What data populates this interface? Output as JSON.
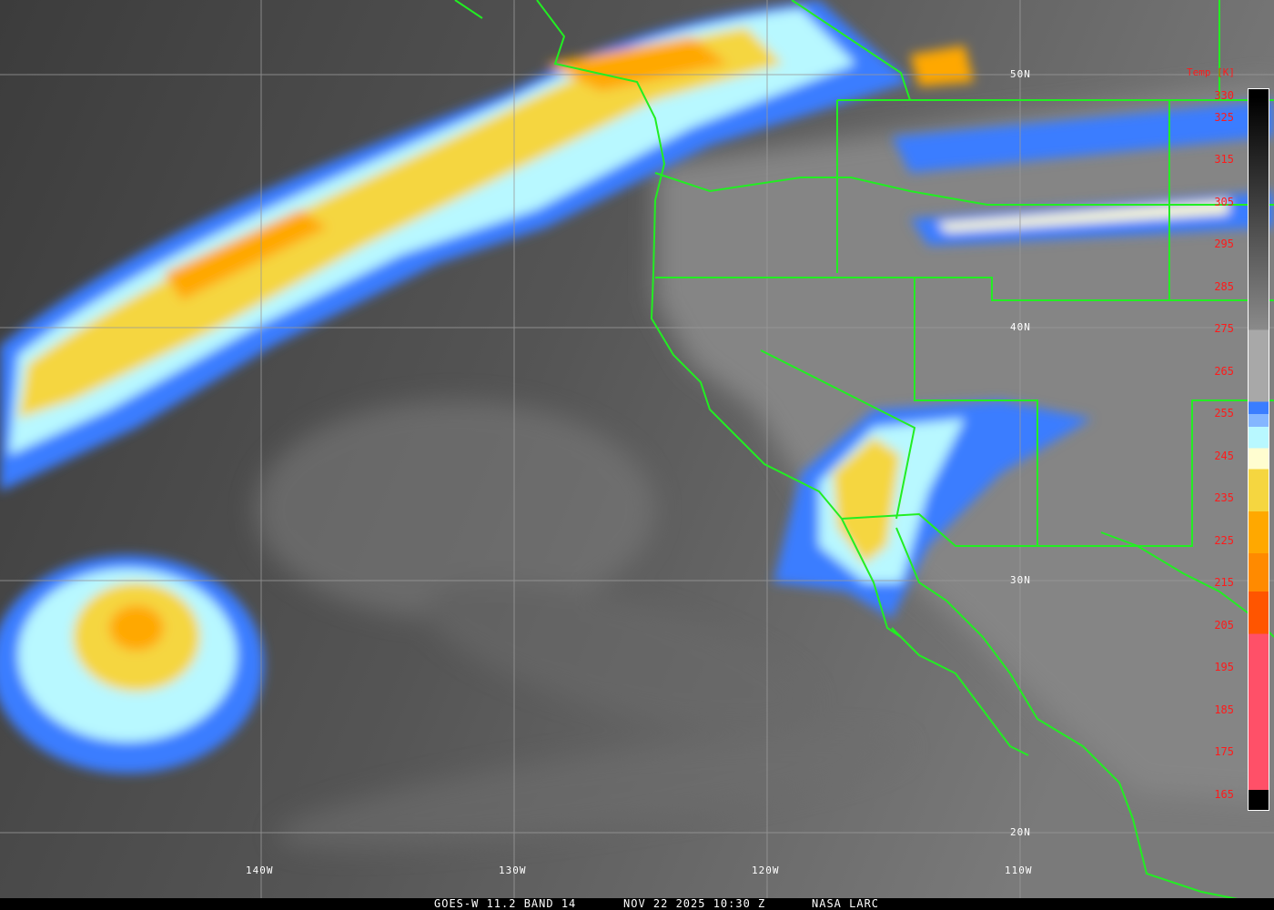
{
  "caption": {
    "satellite": "GOES-W 11.2 BAND 14",
    "datetime": "NOV 22 2025 10:30 Z",
    "source": "NASA LARC"
  },
  "latitude_labels": [
    "50N",
    "40N",
    "30N",
    "20N"
  ],
  "longitude_labels": [
    "140W",
    "130W",
    "120W",
    "110W"
  ],
  "colorbar": {
    "title": "Temp [K]",
    "ticks": [
      "330",
      "325",
      "315",
      "305",
      "295",
      "285",
      "275",
      "265",
      "255",
      "245",
      "235",
      "225",
      "215",
      "205",
      "195",
      "185",
      "175",
      "165"
    ],
    "scale": [
      {
        "from": 330,
        "to": 275,
        "color": "#000000-#8a8a8a"
      },
      {
        "from": 275,
        "to": 258,
        "color": "#a8a8a8"
      },
      {
        "from": 258,
        "to": 255,
        "color": "#3a7dff"
      },
      {
        "from": 255,
        "to": 252,
        "color": "#84b6ff"
      },
      {
        "from": 252,
        "to": 247,
        "color": "#b8f8ff"
      },
      {
        "from": 247,
        "to": 242,
        "color": "#fffdd0"
      },
      {
        "from": 242,
        "to": 232,
        "color": "#f5d640"
      },
      {
        "from": 232,
        "to": 222,
        "color": "#ffa800"
      },
      {
        "from": 222,
        "to": 213,
        "color": "#ff8a00"
      },
      {
        "from": 213,
        "to": 203,
        "color": "#ff5500"
      },
      {
        "from": 203,
        "to": 166,
        "color": "#ff5068"
      }
    ]
  },
  "colors": {
    "borders": "#22ee22",
    "grid": "#9a9a9a",
    "tick_text": "#ff1a1a"
  }
}
